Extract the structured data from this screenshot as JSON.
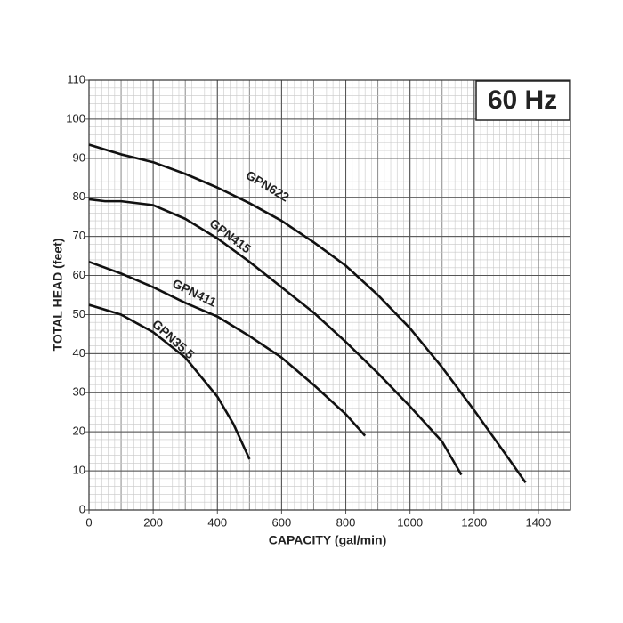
{
  "chart_data": {
    "type": "line",
    "badge": "60 Hz",
    "x_label": "CAPACITY (gal/min)",
    "y_label": "TOTAL HEAD (feet)",
    "xlim": [
      0,
      1500
    ],
    "xticks": [
      0,
      200,
      400,
      600,
      800,
      1000,
      1200,
      1400
    ],
    "ylim": [
      0,
      110
    ],
    "yticks": [
      0,
      10,
      20,
      30,
      40,
      50,
      60,
      70,
      80,
      90,
      100,
      110
    ],
    "grid": true,
    "series": [
      {
        "name": "GPN622",
        "color": "#111111",
        "x": [
          0,
          100,
          200,
          300,
          400,
          500,
          600,
          700,
          800,
          900,
          1000,
          1100,
          1200,
          1300,
          1360
        ],
        "values": [
          93.5,
          91,
          89,
          86,
          82.5,
          78.5,
          74,
          68.5,
          62.5,
          55,
          46.5,
          36.5,
          25.5,
          14,
          7
        ]
      },
      {
        "name": "GPN415",
        "color": "#111111",
        "x": [
          0,
          50,
          100,
          200,
          300,
          400,
          500,
          600,
          700,
          800,
          900,
          1000,
          1100,
          1160
        ],
        "values": [
          79.5,
          79,
          79,
          78,
          74.5,
          69.5,
          63.5,
          57,
          50.5,
          43,
          35,
          26.5,
          17.5,
          9
        ]
      },
      {
        "name": "GPN411",
        "color": "#111111",
        "x": [
          0,
          100,
          200,
          300,
          400,
          500,
          600,
          700,
          800,
          860
        ],
        "values": [
          63.5,
          60.5,
          57,
          53,
          49.5,
          44.5,
          39,
          32,
          24.5,
          19
        ]
      },
      {
        "name": "GPN35.5",
        "color": "#111111",
        "x": [
          0,
          100,
          200,
          300,
          400,
          450,
          500
        ],
        "values": [
          52.5,
          50,
          45.5,
          39,
          29,
          22,
          13
        ]
      }
    ]
  }
}
